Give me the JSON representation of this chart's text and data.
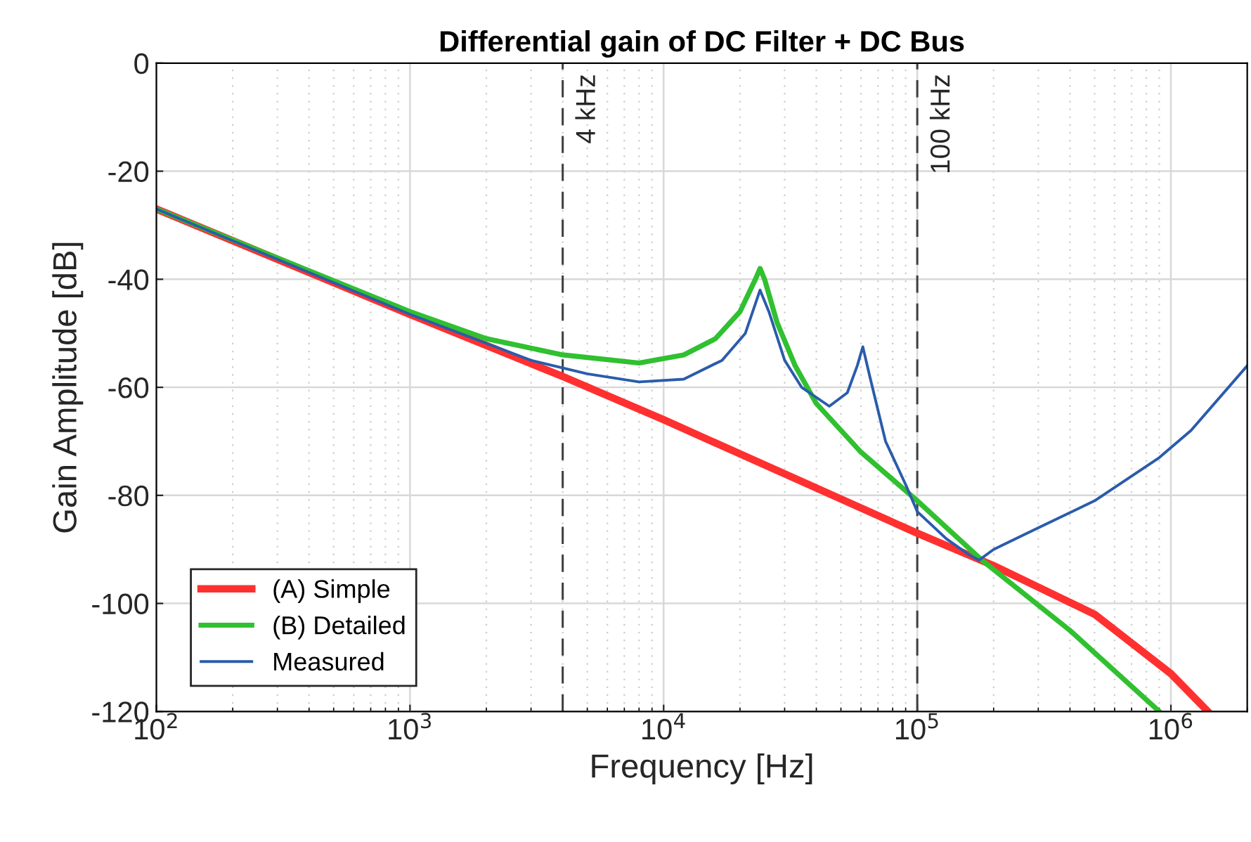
{
  "chart_data": {
    "type": "line",
    "title": "Differential gain of DC Filter + DC Bus",
    "xlabel": "Frequency [Hz]",
    "ylabel": "Gain Amplitude [dB]",
    "log": "x",
    "xlim": [
      100,
      2000000
    ],
    "ylim": [
      -120,
      0
    ],
    "xticks": [
      {
        "value": 100,
        "label": "10$^{2}$"
      },
      {
        "value": 1000,
        "label": "10$^{3}$"
      },
      {
        "value": 10000,
        "label": "10$^{4}$"
      },
      {
        "value": 100000,
        "label": "10$^{5}$"
      },
      {
        "value": 1000000,
        "label": "10$^{6}$"
      }
    ],
    "yticks": [
      -120,
      -100,
      -80,
      -60,
      -40,
      -20,
      0
    ],
    "grid": true,
    "legend": "bottom left",
    "line_style": "solid",
    "marker": "none",
    "ref_lines": [
      {
        "axis": "x",
        "value": 4000,
        "label": "4 kHz",
        "color": "#404040",
        "line_style": "dashed"
      },
      {
        "axis": "x",
        "value": 100000,
        "label": "100 kHz",
        "color": "#404040",
        "line_style": "dashed"
      }
    ],
    "series": [
      {
        "name": "(A) Simple",
        "color": "#ff3030",
        "x": [
          100,
          1000,
          4000,
          10000,
          100000,
          200000,
          500000,
          1000000,
          1400000
        ],
        "values": [
          -27,
          -46.5,
          -58,
          -66,
          -87,
          -93,
          -102,
          -113,
          -120
        ]
      },
      {
        "name": "(B) Detailed",
        "color": "#30c030",
        "x": [
          100,
          1000,
          2000,
          4000,
          8000,
          12000,
          16000,
          20000,
          23000,
          24000,
          25000,
          28000,
          33000,
          40000,
          60000,
          100000,
          180000,
          400000,
          900000
        ],
        "values": [
          -27,
          -46,
          -51,
          -54,
          -55.5,
          -54,
          -51,
          -46,
          -40,
          -38,
          -40,
          -48,
          -56,
          -63,
          -72,
          -81,
          -92,
          -105,
          -120
        ]
      },
      {
        "name": "Measured",
        "color": "#2a5caa",
        "x": [
          100,
          1000,
          3000,
          5000,
          8000,
          12000,
          17000,
          21000,
          24000,
          26000,
          30000,
          35000,
          45000,
          53000,
          58000,
          61000,
          65000,
          75000,
          90000,
          100000,
          130000,
          160000,
          175000,
          200000,
          300000,
          500000,
          900000,
          1200000,
          2000000
        ],
        "values": [
          -27,
          -46.5,
          -55,
          -57.5,
          -59,
          -58.5,
          -55,
          -50,
          -42,
          -46,
          -55,
          -60,
          -63.5,
          -61,
          -56,
          -52.5,
          -58,
          -70,
          -78,
          -83,
          -88,
          -91,
          -92,
          -90,
          -86,
          -81,
          -73,
          -68,
          -56
        ]
      }
    ]
  }
}
